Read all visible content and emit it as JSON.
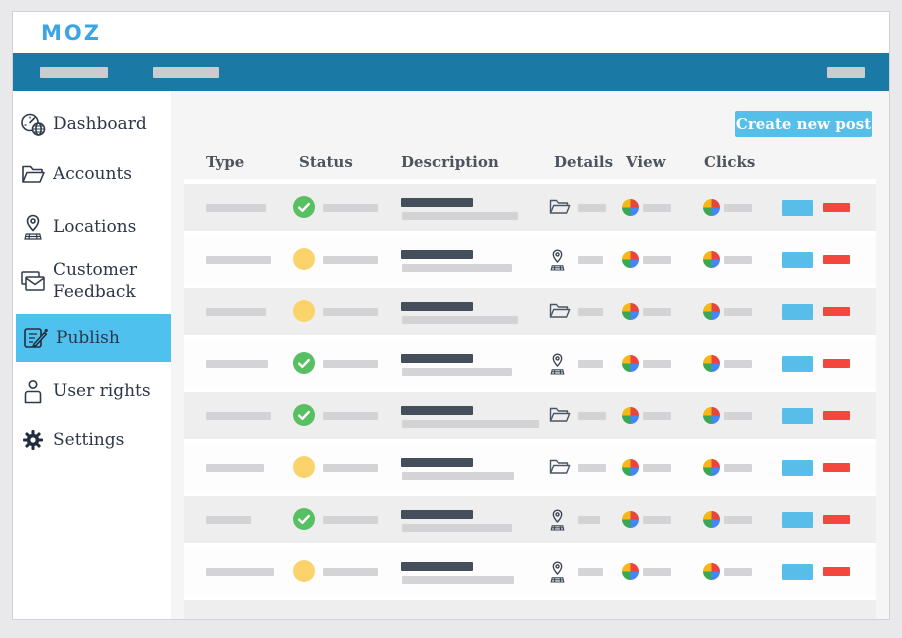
{
  "brand": {
    "logo_text": "MOZ",
    "logo_color": "#3ca6e2"
  },
  "colors": {
    "navbar_bg": "#1a79a5",
    "accent_blue": "#55bfe9",
    "active_item_bg": "#4ec1ee",
    "status_approved_green": "#58bf63",
    "status_pending_yellow": "#fad36a",
    "action_red": "#f3473e",
    "pie_red": "#e8453c",
    "pie_blue": "#4486f4",
    "pie_green": "#3aa757",
    "pie_yellow": "#f6b817",
    "placeholder_gray": "#d4d4d6",
    "description_dark": "#454f5b"
  },
  "navbar": {
    "placeholder_widths": [
      68,
      66,
      38
    ]
  },
  "sidebar": {
    "items": [
      {
        "label": "Dashboard",
        "icon": "dashboard-icon",
        "active": false
      },
      {
        "label": "Accounts",
        "icon": "accounts-folder-icon",
        "active": false
      },
      {
        "label": "Locations",
        "icon": "location-pin-icon",
        "active": false
      },
      {
        "label": "Customer Feedback",
        "icon": "feedback-envelope-icon",
        "active": false
      },
      {
        "label": "Publish",
        "icon": "publish-note-icon",
        "active": true
      },
      {
        "label": "User rights",
        "icon": "user-icon",
        "active": false
      },
      {
        "label": "Settings",
        "icon": "gear-icon",
        "active": false
      }
    ]
  },
  "content": {
    "create_button_label": "Create new post",
    "table": {
      "columns": [
        "Type",
        "Status",
        "Description",
        "Details",
        "View",
        "Clicks"
      ],
      "rows": [
        {
          "status": "approved",
          "details": "folder",
          "type_w": 60,
          "desc_w": 116,
          "det_w": 28
        },
        {
          "status": "pending",
          "details": "location",
          "type_w": 65,
          "desc_w": 110,
          "det_w": 25
        },
        {
          "status": "pending",
          "details": "folder",
          "type_w": 60,
          "desc_w": 116,
          "det_w": 25
        },
        {
          "status": "approved",
          "details": "location",
          "type_w": 62,
          "desc_w": 110,
          "det_w": 25
        },
        {
          "status": "approved",
          "details": "folder",
          "type_w": 65,
          "desc_w": 137,
          "det_w": 28
        },
        {
          "status": "pending",
          "details": "folder",
          "type_w": 58,
          "desc_w": 112,
          "det_w": 28
        },
        {
          "status": "approved",
          "details": "location",
          "type_w": 45,
          "desc_w": 110,
          "det_w": 22
        },
        {
          "status": "pending",
          "details": "location",
          "type_w": 68,
          "desc_w": 112,
          "det_w": 25
        }
      ],
      "partial_ninth_row": true
    }
  }
}
